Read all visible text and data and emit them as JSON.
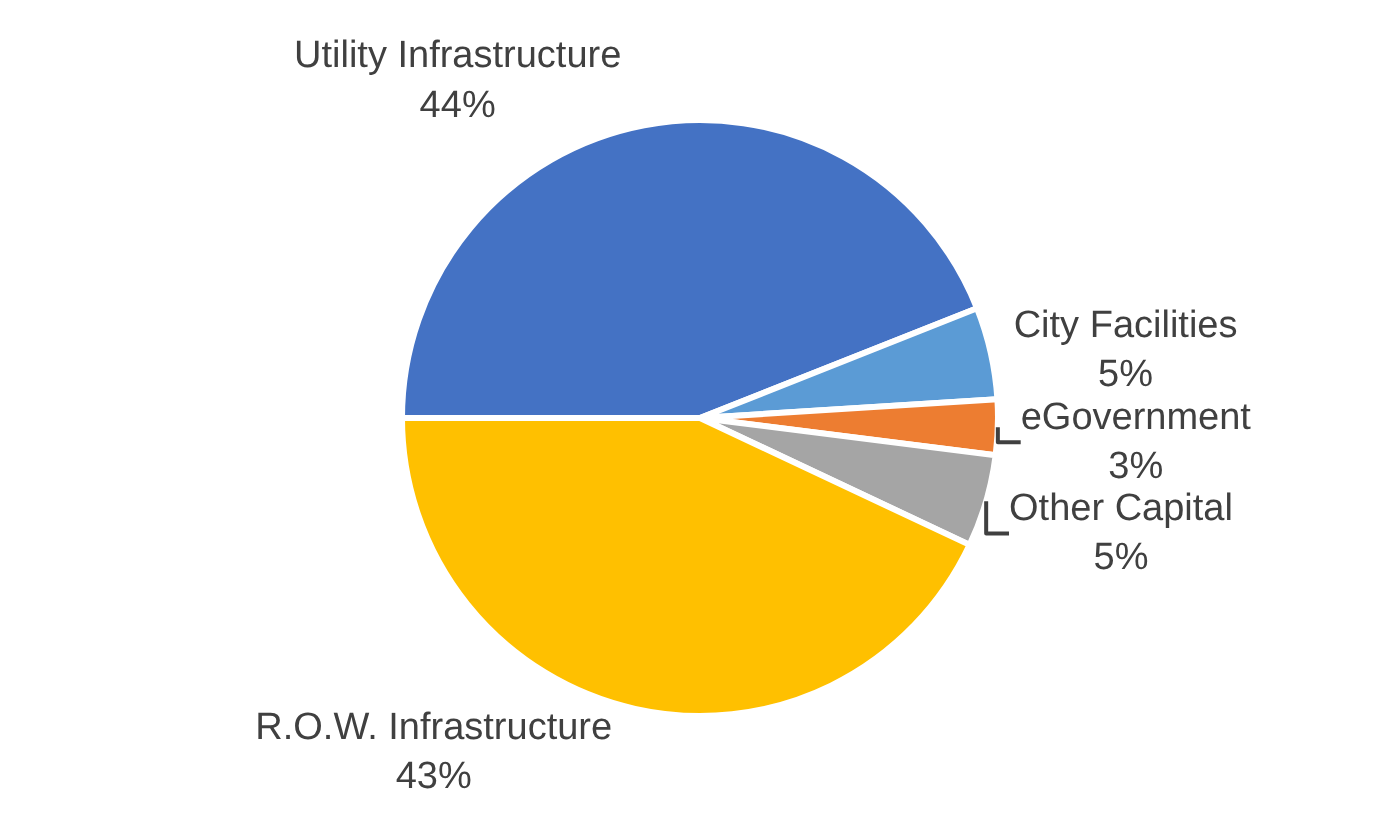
{
  "chart_data": {
    "type": "pie",
    "categories": [
      "Utility Infrastructure",
      "City Facilities",
      "eGovernment",
      "Other Capital",
      "R.O.W. Infrastructure"
    ],
    "values": [
      44,
      5,
      3,
      5,
      43
    ],
    "value_labels": [
      "44%",
      "5%",
      "3%",
      "5%",
      "43%"
    ],
    "colors": [
      "#4472c4",
      "#5b9bd5",
      "#ed7d31",
      "#a5a5a5",
      "#ffc000"
    ],
    "legend": false
  }
}
